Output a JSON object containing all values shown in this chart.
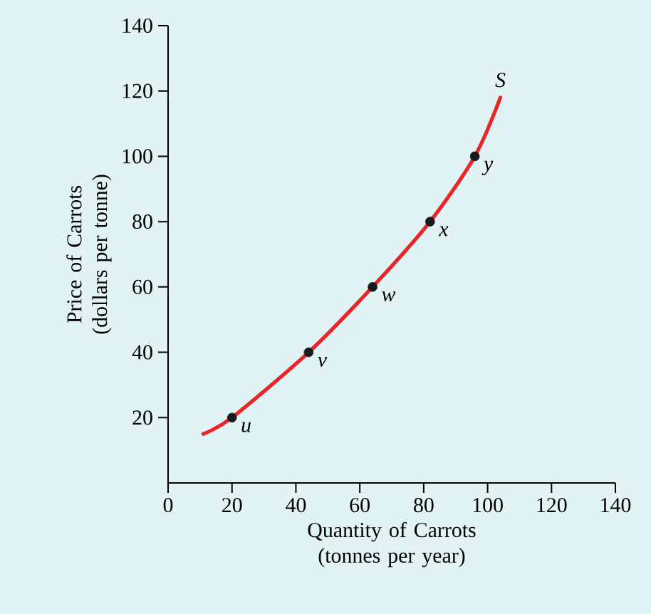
{
  "chart_data": {
    "type": "line",
    "xlabel": "Quantity of Carrots (tonnes per year)",
    "ylabel": "Price of Carrots (dollars per tonne)",
    "xlim": [
      0,
      140
    ],
    "ylim": [
      0,
      140
    ],
    "xticks": [
      0,
      20,
      40,
      60,
      80,
      100,
      120,
      140
    ],
    "yticks": [
      20,
      40,
      60,
      80,
      100,
      120,
      140
    ],
    "series": [
      {
        "color": "#e8262a",
        "marker": "none",
        "x": [
          11,
          20,
          44,
          64,
          82,
          96,
          104
        ],
        "values": [
          15,
          20,
          40,
          60,
          80,
          100,
          118
        ]
      },
      {
        "type": "scatter",
        "color": "#1a1a1a",
        "marker": "circle",
        "x": [
          20,
          44,
          64,
          82,
          96
        ],
        "values": [
          20,
          40,
          60,
          80,
          100
        ]
      }
    ],
    "annotations": [
      {
        "text": "S",
        "x": 104,
        "y": 118
      },
      {
        "text": "u",
        "x": 20,
        "y": 20
      },
      {
        "text": "v",
        "x": 44,
        "y": 40
      },
      {
        "text": "w",
        "x": 64,
        "y": 60
      },
      {
        "text": "x",
        "x": 82,
        "y": 80
      },
      {
        "text": "y",
        "x": 96,
        "y": 100
      }
    ]
  }
}
